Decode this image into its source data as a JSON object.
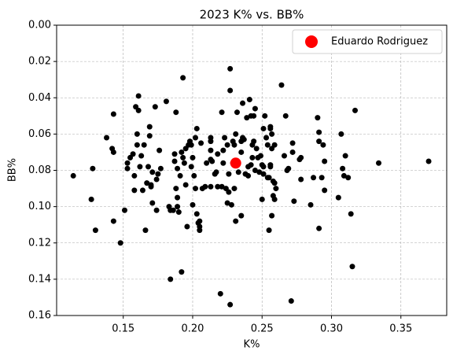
{
  "chart_data": {
    "type": "scatter",
    "title": "2023 K% vs. BB%",
    "x_label": "K%",
    "y_label": "BB%",
    "xlim": [
      0.102,
      0.383
    ],
    "xticks": [
      0.15,
      {
        "value": 0.2,
        "label": "0.20"
      },
      0.25,
      {
        "value": 0.3,
        "label": "0.30"
      },
      0.35
    ],
    "ylim": [
      0,
      0.16
    ],
    "y_inverted": true,
    "yticks": [
      {
        "value": 0,
        "label": "0.00"
      },
      0.02,
      0.04,
      0.06,
      0.08,
      {
        "value": 0.1,
        "label": "0.10"
      },
      0.12,
      0.14,
      0.16
    ],
    "grid": true,
    "legend": "upper right",
    "series": [
      {
        "color": "#000000",
        "size": 3.5,
        "x": [
          0.114,
          0.127,
          0.128,
          0.13,
          0.138,
          0.142,
          0.143,
          0.143,
          0.143,
          0.148,
          0.151,
          0.153,
          0.153,
          0.155,
          0.157,
          0.158,
          0.158,
          0.159,
          0.16,
          0.16,
          0.161,
          0.161,
          0.162,
          0.163,
          0.164,
          0.165,
          0.166,
          0.167,
          0.168,
          0.169,
          0.169,
          0.17,
          0.17,
          0.171,
          0.171,
          0.173,
          0.174,
          0.174,
          0.175,
          0.176,
          0.177,
          0.181,
          0.183,
          0.184,
          0.184,
          0.186,
          0.187,
          0.187,
          0.188,
          0.188,
          0.189,
          0.189,
          0.189,
          0.19,
          0.191,
          0.192,
          0.192,
          0.193,
          0.193,
          0.194,
          0.195,
          0.195,
          0.196,
          0.197,
          0.198,
          0.199,
          0.199,
          0.2,
          0.2,
          0.201,
          0.202,
          0.202,
          0.203,
          0.203,
          0.204,
          0.205,
          0.205,
          0.205,
          0.206,
          0.207,
          0.209,
          0.21,
          0.213,
          0.213,
          0.213,
          0.213,
          0.213,
          0.214,
          0.216,
          0.217,
          0.218,
          0.218,
          0.22,
          0.221,
          0.221,
          0.222,
          0.222,
          0.223,
          0.224,
          0.225,
          0.225,
          0.226,
          0.226,
          0.227,
          0.227,
          0.227,
          0.228,
          0.229,
          0.229,
          0.23,
          0.23,
          0.231,
          0.231,
          0.232,
          0.233,
          0.235,
          0.235,
          0.235,
          0.236,
          0.236,
          0.237,
          0.238,
          0.239,
          0.24,
          0.24,
          0.241,
          0.242,
          0.242,
          0.243,
          0.243,
          0.244,
          0.244,
          0.245,
          0.245,
          0.246,
          0.247,
          0.248,
          0.249,
          0.25,
          0.25,
          0.251,
          0.251,
          0.251,
          0.252,
          0.253,
          0.254,
          0.254,
          0.255,
          0.255,
          0.256,
          0.256,
          0.256,
          0.256,
          0.257,
          0.257,
          0.257,
          0.258,
          0.258,
          0.259,
          0.259,
          0.259,
          0.26,
          0.264,
          0.266,
          0.267,
          0.268,
          0.269,
          0.271,
          0.272,
          0.272,
          0.273,
          0.277,
          0.278,
          0.278,
          0.285,
          0.287,
          0.29,
          0.291,
          0.291,
          0.291,
          0.293,
          0.294,
          0.295,
          0.295,
          0.305,
          0.307,
          0.308,
          0.309,
          0.31,
          0.312,
          0.314,
          0.315,
          0.317,
          0.334,
          0.37
        ],
        "values": [
          0.083,
          0.096,
          0.079,
          0.113,
          0.062,
          0.068,
          0.049,
          0.07,
          0.108,
          0.12,
          0.102,
          0.076,
          0.079,
          0.073,
          0.071,
          0.083,
          0.091,
          0.045,
          0.066,
          0.06,
          0.047,
          0.039,
          0.078,
          0.072,
          0.091,
          0.066,
          0.113,
          0.087,
          0.078,
          0.061,
          0.056,
          0.089,
          0.088,
          0.081,
          0.098,
          0.045,
          0.085,
          0.102,
          0.082,
          0.069,
          0.079,
          0.042,
          0.1,
          0.102,
          0.14,
          0.102,
          0.071,
          0.075,
          0.09,
          0.048,
          0.079,
          0.1,
          0.095,
          0.103,
          0.083,
          0.136,
          0.07,
          0.029,
          0.073,
          0.076,
          0.068,
          0.088,
          0.111,
          0.066,
          0.064,
          0.066,
          0.078,
          0.073,
          0.099,
          0.083,
          0.062,
          0.09,
          0.057,
          0.104,
          0.109,
          0.108,
          0.111,
          0.113,
          0.065,
          0.09,
          0.089,
          0.076,
          0.062,
          0.064,
          0.069,
          0.074,
          0.089,
          0.075,
          0.082,
          0.081,
          0.071,
          0.089,
          0.148,
          0.089,
          0.048,
          0.069,
          0.076,
          0.062,
          0.09,
          0.066,
          0.098,
          0.092,
          0.082,
          0.024,
          0.036,
          0.154,
          0.099,
          0.064,
          0.076,
          0.09,
          0.066,
          0.06,
          0.108,
          0.048,
          0.081,
          0.07,
          0.064,
          0.105,
          0.062,
          0.043,
          0.063,
          0.082,
          0.051,
          0.078,
          0.083,
          0.041,
          0.077,
          0.05,
          0.073,
          0.066,
          0.064,
          0.05,
          0.046,
          0.08,
          0.068,
          0.073,
          0.081,
          0.072,
          0.096,
          0.077,
          0.082,
          0.057,
          0.078,
          0.05,
          0.062,
          0.066,
          0.084,
          0.113,
          0.084,
          0.057,
          0.056,
          0.077,
          0.078,
          0.06,
          0.068,
          0.105,
          0.094,
          0.086,
          0.087,
          0.096,
          0.066,
          0.09,
          0.033,
          0.072,
          0.05,
          0.08,
          0.079,
          0.152,
          0.065,
          0.07,
          0.097,
          0.074,
          0.085,
          0.073,
          0.099,
          0.084,
          0.051,
          0.059,
          0.064,
          0.112,
          0.084,
          0.066,
          0.075,
          0.091,
          0.095,
          0.06,
          0.079,
          0.083,
          0.072,
          0.084,
          0.104,
          0.133,
          0.047,
          0.076,
          0.075
        ]
      },
      {
        "name": "Eduardo Rodriguez",
        "color": "#ff0000",
        "size": 7,
        "x": [
          0.231
        ],
        "values": [
          0.076
        ]
      }
    ]
  }
}
